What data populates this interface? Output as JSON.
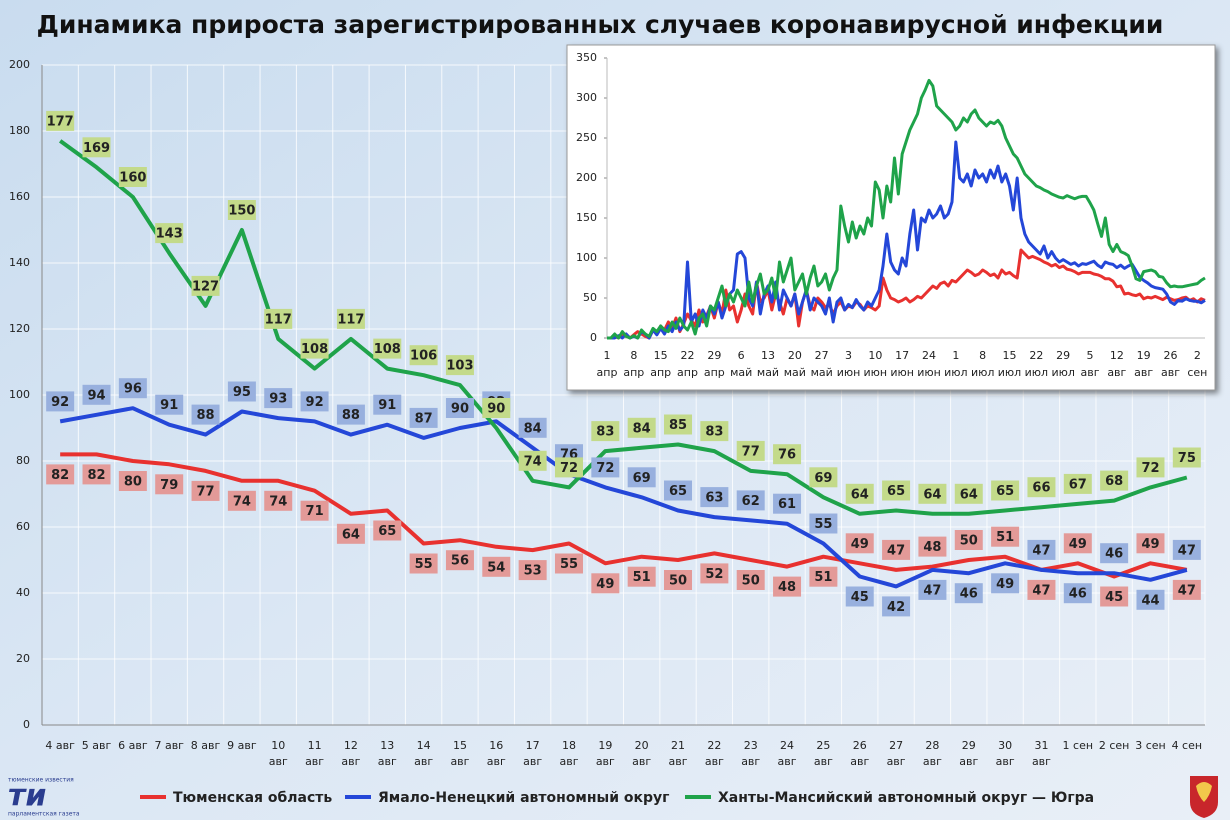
{
  "chart_data": [
    {
      "type": "line",
      "title": "Динамика прироста зарегистрированных случаев коронавирусной инфекции",
      "categories": [
        [
          "4 авг"
        ],
        [
          "5 авг"
        ],
        [
          "6 авг"
        ],
        [
          "7 авг"
        ],
        [
          "8 авг"
        ],
        [
          "9 авг"
        ],
        [
          "10",
          "авг"
        ],
        [
          "11",
          "авг"
        ],
        [
          "12",
          "авг"
        ],
        [
          "13",
          "авг"
        ],
        [
          "14",
          "авг"
        ],
        [
          "15",
          "авг"
        ],
        [
          "16",
          "авг"
        ],
        [
          "17",
          "авг"
        ],
        [
          "18",
          "авг"
        ],
        [
          "19",
          "авг"
        ],
        [
          "20",
          "авг"
        ],
        [
          "21",
          "авг"
        ],
        [
          "22",
          "авг"
        ],
        [
          "23",
          "авг"
        ],
        [
          "24",
          "авг"
        ],
        [
          "25",
          "авг"
        ],
        [
          "26",
          "авг"
        ],
        [
          "27",
          "авг"
        ],
        [
          "28",
          "авг"
        ],
        [
          "29",
          "авг"
        ],
        [
          "30",
          "авг"
        ],
        [
          "31",
          "авг"
        ],
        [
          "1 сен"
        ],
        [
          "2 сен"
        ],
        [
          "3 сен"
        ],
        [
          "4 сен"
        ]
      ],
      "series": [
        {
          "name": "Тюменская область",
          "color": "#e8312f",
          "label_color": "#e39a98",
          "values": [
            82,
            82,
            80,
            79,
            77,
            74,
            74,
            71,
            64,
            65,
            55,
            56,
            54,
            53,
            55,
            49,
            51,
            50,
            52,
            50,
            48,
            51,
            49,
            47,
            48,
            50,
            51,
            47,
            49,
            45,
            49,
            47
          ]
        },
        {
          "name": "Ямало-Ненецкий автономный округ",
          "color": "#2447d8",
          "label_color": "#98b0de",
          "values": [
            92,
            94,
            96,
            91,
            88,
            95,
            93,
            92,
            88,
            91,
            87,
            90,
            92,
            84,
            76,
            72,
            69,
            65,
            63,
            62,
            61,
            55,
            45,
            42,
            47,
            46,
            49,
            47,
            46,
            46,
            44,
            47
          ]
        },
        {
          "name": "Ханты-Мансийский автономный округ — Югра",
          "color": "#1fa34a",
          "label_color": "#c3da8a",
          "values": [
            177,
            169,
            160,
            143,
            127,
            150,
            117,
            108,
            117,
            108,
            106,
            103,
            90,
            74,
            72,
            83,
            84,
            85,
            83,
            77,
            76,
            69,
            64,
            65,
            64,
            64,
            65,
            66,
            67,
            68,
            72,
            75
          ]
        }
      ],
      "ylim": [
        0,
        200
      ],
      "yticks": [
        0,
        20,
        40,
        60,
        80,
        100,
        120,
        140,
        160,
        180,
        200
      ],
      "grid": true,
      "legend": "bottom"
    },
    {
      "type": "line",
      "categories": [
        [
          "1",
          "апр"
        ],
        null,
        null,
        null,
        null,
        null,
        null,
        [
          "8",
          "апр"
        ],
        null,
        null,
        null,
        null,
        null,
        null,
        [
          "15",
          "апр"
        ],
        null,
        null,
        null,
        null,
        null,
        null,
        [
          "22",
          "апр"
        ],
        null,
        null,
        null,
        null,
        null,
        null,
        [
          "29",
          "апр"
        ],
        null,
        null,
        null,
        null,
        null,
        null,
        [
          "6",
          "май"
        ],
        null,
        null,
        null,
        null,
        null,
        null,
        [
          "13",
          "май"
        ],
        null,
        null,
        null,
        null,
        null,
        null,
        [
          "20",
          "май"
        ],
        null,
        null,
        null,
        null,
        null,
        null,
        [
          "27",
          "май"
        ],
        null,
        null,
        null,
        null,
        null,
        null,
        [
          "3",
          "июн"
        ],
        null,
        null,
        null,
        null,
        null,
        null,
        [
          "10",
          "июн"
        ],
        null,
        null,
        null,
        null,
        null,
        null,
        [
          "17",
          "июн"
        ],
        null,
        null,
        null,
        null,
        null,
        null,
        [
          "24",
          "июн"
        ],
        null,
        null,
        null,
        null,
        null,
        null,
        [
          "1",
          "июл"
        ],
        null,
        null,
        null,
        null,
        null,
        null,
        [
          "8",
          "июл"
        ],
        null,
        null,
        null,
        null,
        null,
        null,
        [
          "15",
          "июл"
        ],
        null,
        null,
        null,
        null,
        null,
        null,
        [
          "22",
          "июл"
        ],
        null,
        null,
        null,
        null,
        null,
        null,
        [
          "29",
          "июл"
        ],
        null,
        null,
        null,
        null,
        null,
        null,
        [
          "5",
          "авг"
        ],
        null,
        null,
        null,
        null,
        null,
        null,
        [
          "12",
          "авг"
        ],
        null,
        null,
        null,
        null,
        null,
        null,
        [
          "19",
          "авг"
        ],
        null,
        null,
        null,
        null,
        null,
        null,
        [
          "26",
          "авг"
        ],
        null,
        null,
        null,
        null,
        null,
        null,
        [
          "2",
          "сен"
        ],
        null,
        null
      ],
      "series": [
        {
          "color": "#e8312f",
          "values": [
            0,
            0,
            2,
            0,
            5,
            3,
            0,
            4,
            8,
            5,
            2,
            0,
            10,
            6,
            15,
            10,
            20,
            12,
            25,
            8,
            18,
            30,
            22,
            15,
            35,
            20,
            28,
            40,
            25,
            45,
            30,
            60,
            35,
            40,
            20,
            35,
            55,
            40,
            30,
            70,
            45,
            50,
            60,
            35,
            55,
            45,
            30,
            50,
            40,
            55,
            15,
            45,
            60,
            40,
            35,
            50,
            45,
            38,
            42,
            30,
            40,
            45,
            35,
            40,
            38,
            45,
            42,
            35,
            40,
            38,
            35,
            40,
            75,
            60,
            50,
            48,
            45,
            47,
            50,
            45,
            48,
            52,
            50,
            55,
            60,
            65,
            62,
            68,
            70,
            65,
            72,
            70,
            75,
            80,
            85,
            82,
            78,
            80,
            85,
            82,
            78,
            80,
            75,
            85,
            80,
            82,
            78,
            75,
            110,
            105,
            100,
            102,
            100,
            98,
            95,
            93,
            90,
            92,
            88,
            90,
            86,
            85,
            83,
            80,
            82,
            82,
            82,
            80,
            79,
            77,
            74,
            74,
            71,
            64,
            65,
            55,
            56,
            54,
            53,
            55,
            49,
            51,
            50,
            52,
            50,
            48,
            51,
            49,
            47,
            48,
            50,
            51,
            47,
            49,
            45,
            49,
            47
          ]
        },
        {
          "color": "#2447d8",
          "values": [
            0,
            0,
            0,
            3,
            0,
            5,
            0,
            2,
            0,
            8,
            5,
            0,
            10,
            4,
            12,
            5,
            15,
            8,
            20,
            10,
            15,
            95,
            20,
            30,
            15,
            35,
            25,
            40,
            30,
            45,
            25,
            40,
            55,
            60,
            105,
            108,
            100,
            50,
            40,
            70,
            30,
            55,
            65,
            45,
            70,
            35,
            60,
            50,
            40,
            55,
            30,
            45,
            60,
            35,
            50,
            45,
            40,
            30,
            50,
            20,
            45,
            50,
            35,
            42,
            38,
            48,
            40,
            35,
            45,
            40,
            50,
            60,
            90,
            130,
            95,
            85,
            80,
            100,
            90,
            130,
            160,
            110,
            150,
            145,
            160,
            150,
            155,
            165,
            150,
            155,
            170,
            245,
            200,
            195,
            205,
            190,
            210,
            200,
            205,
            195,
            210,
            200,
            215,
            195,
            205,
            190,
            160,
            200,
            150,
            130,
            120,
            115,
            110,
            105,
            115,
            100,
            108,
            100,
            95,
            98,
            95,
            92,
            94,
            90,
            93,
            92,
            94,
            96,
            91,
            88,
            95,
            93,
            92,
            88,
            91,
            87,
            90,
            92,
            84,
            76,
            72,
            69,
            65,
            63,
            62,
            61,
            55,
            45,
            42,
            47,
            46,
            49,
            47,
            46,
            46,
            44,
            47
          ]
        },
        {
          "color": "#1fa34a",
          "values": [
            0,
            0,
            5,
            0,
            8,
            2,
            0,
            3,
            0,
            10,
            5,
            2,
            12,
            8,
            15,
            10,
            8,
            20,
            12,
            25,
            15,
            10,
            20,
            5,
            25,
            30,
            15,
            40,
            35,
            50,
            65,
            40,
            55,
            45,
            60,
            50,
            40,
            70,
            45,
            65,
            80,
            55,
            60,
            75,
            50,
            95,
            70,
            85,
            100,
            60,
            70,
            80,
            55,
            75,
            90,
            65,
            70,
            80,
            60,
            75,
            85,
            165,
            140,
            120,
            145,
            125,
            140,
            130,
            150,
            140,
            195,
            185,
            150,
            190,
            170,
            225,
            180,
            230,
            245,
            260,
            270,
            280,
            300,
            310,
            322,
            315,
            290,
            285,
            280,
            275,
            270,
            260,
            265,
            275,
            270,
            280,
            285,
            275,
            270,
            265,
            270,
            268,
            272,
            265,
            250,
            240,
            230,
            225,
            215,
            205,
            200,
            195,
            190,
            188,
            185,
            183,
            180,
            178,
            176,
            175,
            178,
            176,
            174,
            176,
            177,
            177,
            169,
            160,
            143,
            127,
            150,
            117,
            108,
            117,
            108,
            106,
            103,
            90,
            74,
            72,
            83,
            84,
            85,
            83,
            77,
            76,
            69,
            64,
            65,
            64,
            64,
            65,
            66,
            67,
            68,
            72,
            75
          ]
        }
      ],
      "ylim": [
        0,
        350
      ],
      "yticks": [
        0,
        50,
        100,
        150,
        200,
        250,
        300,
        350
      ],
      "grid": false
    }
  ],
  "logo": {
    "top": "тюменские известия",
    "mark": "ти",
    "bottom": "парламентская газета"
  }
}
